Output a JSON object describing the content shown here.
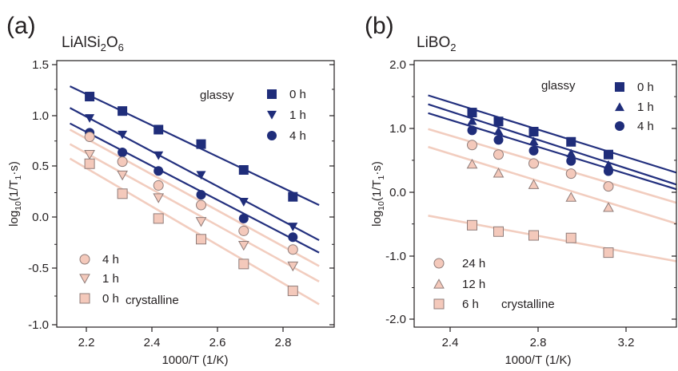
{
  "chart_data": [
    {
      "panel": "(a)",
      "type": "scatter",
      "compound": {
        "base": "LiAlSi",
        "sub1": "2",
        "mid": "O",
        "sub2": "6"
      },
      "xlabel": "1000/T (1/K)",
      "ylabel": {
        "pre": "log",
        "sub": "10",
        "mid": "(1/T",
        "sub2": "1",
        "post": "·s)"
      },
      "xlim": [
        2.13,
        2.92
      ],
      "ylim": [
        -1.08,
        1.58
      ],
      "xticks": [
        "2.2",
        "2.4",
        "2.6",
        "2.8"
      ],
      "yticks": [
        "-1.0",
        "-0.5",
        "0.0",
        "0.5",
        "1.0",
        "1.5"
      ],
      "glassy_label": "glassy",
      "crystalline_label": "crystalline",
      "legend_glassy": [
        {
          "label": "0 h",
          "marker": "square"
        },
        {
          "label": "1 h",
          "marker": "triangle-down"
        },
        {
          "label": "4 h",
          "marker": "circle"
        }
      ],
      "legend_crystalline": [
        {
          "label": "4 h",
          "marker": "circle"
        },
        {
          "label": "1 h",
          "marker": "triangle-down"
        },
        {
          "label": "0 h",
          "marker": "square"
        }
      ],
      "series": [
        {
          "name": "0 h",
          "group": "glassy",
          "marker": "square",
          "x": [
            2.21,
            2.31,
            2.42,
            2.55,
            2.68,
            2.83
          ],
          "y": [
            1.18,
            1.04,
            0.86,
            0.72,
            0.47,
            0.21
          ],
          "fit": [
            [
              2.15,
              1.28
            ],
            [
              2.91,
              0.13
            ]
          ]
        },
        {
          "name": "1 h",
          "group": "glassy",
          "marker": "triangle-down",
          "x": [
            2.21,
            2.31,
            2.42,
            2.55,
            2.68,
            2.83
          ],
          "y": [
            0.97,
            0.81,
            0.61,
            0.42,
            0.16,
            -0.08
          ],
          "fit": [
            [
              2.15,
              1.07
            ],
            [
              2.91,
              -0.21
            ]
          ]
        },
        {
          "name": "4 h",
          "group": "glassy",
          "marker": "circle",
          "x": [
            2.21,
            2.31,
            2.42,
            2.55,
            2.68,
            2.83
          ],
          "y": [
            0.83,
            0.64,
            0.46,
            0.23,
            0.0,
            -0.18
          ],
          "fit": [
            [
              2.15,
              0.92
            ],
            [
              2.91,
              -0.33
            ]
          ]
        },
        {
          "name": "4 h",
          "group": "crystalline",
          "marker": "circle",
          "x": [
            2.21,
            2.31,
            2.42,
            2.55,
            2.68,
            2.83
          ],
          "y": [
            0.79,
            0.55,
            0.32,
            0.13,
            -0.12,
            -0.3
          ],
          "fit": [
            [
              2.15,
              0.86
            ],
            [
              2.91,
              -0.46
            ]
          ]
        },
        {
          "name": "1 h",
          "group": "crystalline",
          "marker": "triangle-down",
          "x": [
            2.21,
            2.31,
            2.42,
            2.55,
            2.68,
            2.83
          ],
          "y": [
            0.62,
            0.42,
            0.2,
            -0.03,
            -0.26,
            -0.46
          ],
          "fit": [
            [
              2.15,
              0.72
            ],
            [
              2.91,
              -0.61
            ]
          ]
        },
        {
          "name": "0 h",
          "group": "crystalline",
          "marker": "square",
          "x": [
            2.21,
            2.31,
            2.42,
            2.55,
            2.68,
            2.83
          ],
          "y": [
            0.53,
            0.24,
            0.0,
            -0.2,
            -0.44,
            -0.7
          ],
          "fit": [
            [
              2.15,
              0.58
            ],
            [
              2.91,
              -0.83
            ]
          ]
        }
      ]
    },
    {
      "panel": "(b)",
      "type": "scatter",
      "compound": {
        "base": "LiBO",
        "sub1": "2",
        "mid": "",
        "sub2": ""
      },
      "xlabel": "1000/T (1/K)",
      "ylabel": {
        "pre": "log",
        "sub": "10",
        "mid": "(1/T",
        "sub2": "1",
        "post": "·s)"
      },
      "xlim": [
        2.25,
        3.51
      ],
      "ylim": [
        -2.08,
        2.08
      ],
      "xticks": [
        "2.4",
        "2.8",
        "3.2"
      ],
      "yticks": [
        "-2.0",
        "-1.0",
        "0.0",
        "1.0",
        "2.0"
      ],
      "glassy_label": "glassy",
      "crystalline_label": "crystalline",
      "legend_glassy": [
        {
          "label": "0 h",
          "marker": "square"
        },
        {
          "label": "1 h",
          "marker": "triangle-up"
        },
        {
          "label": "4 h",
          "marker": "circle"
        }
      ],
      "legend_crystalline": [
        {
          "label": "24 h",
          "marker": "circle"
        },
        {
          "label": "12 h",
          "marker": "triangle-up"
        },
        {
          "label": "6 h",
          "marker": "square"
        }
      ],
      "series": [
        {
          "name": "0 h",
          "group": "glassy",
          "marker": "square",
          "x": [
            2.5,
            2.62,
            2.78,
            2.95,
            3.12
          ],
          "y": [
            1.25,
            1.11,
            0.95,
            0.79,
            0.59
          ],
          "fit": [
            [
              2.3,
              1.52
            ],
            [
              3.5,
              0.23
            ]
          ]
        },
        {
          "name": "1 h",
          "group": "glassy",
          "marker": "triangle-up",
          "x": [
            2.5,
            2.62,
            2.78,
            2.95,
            3.12
          ],
          "y": [
            1.12,
            0.96,
            0.8,
            0.61,
            0.43
          ],
          "fit": [
            [
              2.3,
              1.38
            ],
            [
              3.5,
              0.04
            ]
          ]
        },
        {
          "name": "4 h",
          "group": "glassy",
          "marker": "circle",
          "x": [
            2.5,
            2.62,
            2.78,
            2.95,
            3.12
          ],
          "y": [
            0.97,
            0.82,
            0.65,
            0.49,
            0.33
          ],
          "fit": [
            [
              2.3,
              1.24
            ],
            [
              3.5,
              -0.03
            ]
          ]
        },
        {
          "name": "24 h",
          "group": "crystalline",
          "marker": "circle",
          "x": [
            2.5,
            2.62,
            2.78,
            2.95,
            3.12
          ],
          "y": [
            0.74,
            0.59,
            0.45,
            0.29,
            0.09
          ],
          "fit": [
            [
              2.3,
              0.99
            ],
            [
              3.5,
              -0.24
            ]
          ]
        },
        {
          "name": "12 h",
          "group": "crystalline",
          "marker": "triangle-up",
          "x": [
            2.5,
            2.62,
            2.78,
            2.95,
            3.12
          ],
          "y": [
            0.44,
            0.3,
            0.12,
            -0.08,
            -0.24
          ],
          "fit": [
            [
              2.3,
              0.71
            ],
            [
              3.5,
              -0.57
            ]
          ]
        },
        {
          "name": "6 h",
          "group": "crystalline",
          "marker": "square",
          "x": [
            2.5,
            2.62,
            2.78,
            2.95,
            3.12
          ],
          "y": [
            -0.52,
            -0.62,
            -0.68,
            -0.72,
            -0.95
          ],
          "fit": [
            [
              2.3,
              -0.37
            ],
            [
              3.5,
              -1.13
            ]
          ]
        }
      ]
    }
  ],
  "colors": {
    "glassy": "#1f2d7a",
    "glassy_line": "#23307e",
    "crystalline_fill": "#f4c9bb",
    "crystalline_stroke": "#8f7c79",
    "crystalline_line": "#f2cdbf",
    "axis": "#231f20",
    "text": "#231f20"
  }
}
